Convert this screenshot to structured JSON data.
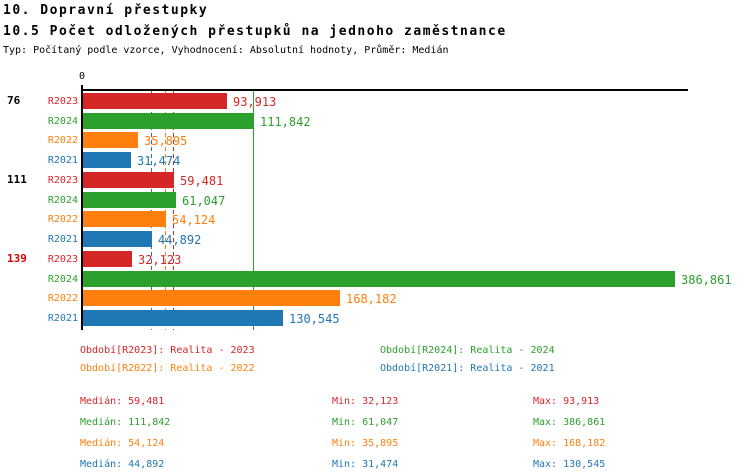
{
  "header": {
    "title1": "10. Dopravní přestupky",
    "title2": "10.5 Počet odložených přestupků na jednoho zaměstnance",
    "subtitle": "Typ: Počítaný podle vzorce, Vyhodnocení: Absolutní hodnoty, Průměr: Medián"
  },
  "colors": {
    "R2023": "#d62728",
    "R2024": "#2ca02c",
    "R2022": "#ff7f0e",
    "R2021": "#1f77b4",
    "alert_group_label": "#dd0000",
    "axis": "#000000"
  },
  "chart_data": {
    "type": "bar",
    "orientation": "horizontal",
    "zero_label": "0",
    "x_min": 0,
    "x_max_approx": 395000,
    "grid": false,
    "groups": [
      {
        "label": "76",
        "label_color": "#000000",
        "bars": [
          {
            "series": "R2023",
            "value": 93913,
            "label": "93,913"
          },
          {
            "series": "R2024",
            "value": 111842,
            "label": "111,842"
          },
          {
            "series": "R2022",
            "value": 35895,
            "label": "35,895"
          },
          {
            "series": "R2021",
            "value": 31474,
            "label": "31,474"
          }
        ]
      },
      {
        "label": "111",
        "label_color": "#000000",
        "bars": [
          {
            "series": "R2023",
            "value": 59481,
            "label": "59,481"
          },
          {
            "series": "R2024",
            "value": 61047,
            "label": "61,047"
          },
          {
            "series": "R2022",
            "value": 54124,
            "label": "54,124"
          },
          {
            "series": "R2021",
            "value": 44892,
            "label": "44,892"
          }
        ]
      },
      {
        "label": "139",
        "label_color": "#dd0000",
        "bars": [
          {
            "series": "R2023",
            "value": 32123,
            "label": "32,123"
          },
          {
            "series": "R2024",
            "value": 386861,
            "label": "386,861"
          },
          {
            "series": "R2022",
            "value": 168182,
            "label": "168,182"
          },
          {
            "series": "R2021",
            "value": 130545,
            "label": "130,545"
          }
        ]
      }
    ],
    "median_lines": [
      {
        "series": "R2021",
        "value": 44892,
        "style": "dashed"
      },
      {
        "series": "R2022",
        "value": 54124,
        "style": "dashed"
      },
      {
        "series": "R2023",
        "value": 59481,
        "style": "dashed"
      },
      {
        "series": "R2024",
        "value": 111842,
        "style": "solid"
      }
    ]
  },
  "legend": {
    "items": [
      {
        "series": "R2023",
        "label": "Období[R2023]: Realita - 2023"
      },
      {
        "series": "R2024",
        "label": "Období[R2024]: Realita - 2024"
      },
      {
        "series": "R2022",
        "label": "Období[R2022]: Realita - 2022"
      },
      {
        "series": "R2021",
        "label": "Období[R2021]: Realita - 2021"
      }
    ]
  },
  "stats": {
    "rows": [
      {
        "series": "R2023",
        "median": "Medián: 59,481",
        "min": "Min: 32,123",
        "max": "Max: 93,913"
      },
      {
        "series": "R2024",
        "median": "Medián: 111,842",
        "min": "Min: 61,047",
        "max": "Max: 386,861"
      },
      {
        "series": "R2022",
        "median": "Medián: 54,124",
        "min": "Min: 35,895",
        "max": "Max: 168,182"
      },
      {
        "series": "R2021",
        "median": "Medián: 44,892",
        "min": "Min: 31,474",
        "max": "Max: 130,545"
      }
    ]
  }
}
